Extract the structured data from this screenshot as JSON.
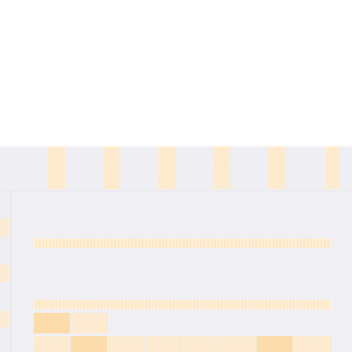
{
  "view": {
    "column_headers": [
      "",
      "",
      "",
      "",
      "",
      ""
    ],
    "row_headers": [
      "",
      "",
      ""
    ],
    "bands": [
      "",
      ""
    ],
    "cells": [
      {
        "label": "",
        "highlighted": true
      },
      {
        "label": "",
        "highlighted": false
      },
      {
        "label": "",
        "highlighted": false
      },
      {
        "label": "",
        "highlighted": true
      },
      {
        "label": "",
        "highlighted": false
      },
      {
        "label": "",
        "highlighted": false
      },
      {
        "label": "",
        "highlighted": false
      },
      {
        "label": "",
        "highlighted": false
      },
      {
        "label": "",
        "highlighted": true
      },
      {
        "label": "",
        "highlighted": false
      }
    ],
    "colors": {
      "header_background": "#efeff3",
      "grid_background": "#f0f0f4",
      "placeholder_fill": "#fde8c7",
      "placeholder_fill_strong": "#fbdcaa"
    }
  }
}
